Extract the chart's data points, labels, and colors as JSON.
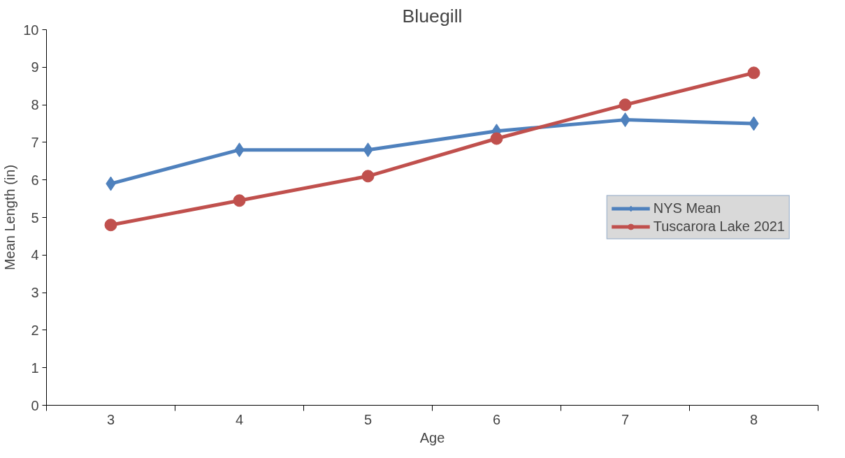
{
  "chart_data": {
    "type": "line",
    "title": "Bluegill",
    "xlabel": "Age",
    "ylabel": "Mean Length (in)",
    "categories": [
      "3",
      "4",
      "5",
      "6",
      "7",
      "8"
    ],
    "series": [
      {
        "name": "NYS Mean",
        "color": "#4f81bd",
        "marker": "diamond",
        "values": [
          5.9,
          6.8,
          6.8,
          7.3,
          7.6,
          7.5
        ]
      },
      {
        "name": "Tuscarora Lake 2021",
        "color": "#c0504d",
        "marker": "circle",
        "values": [
          4.8,
          5.45,
          6.1,
          7.1,
          8.0,
          8.85
        ]
      }
    ],
    "ylim": [
      0,
      10
    ],
    "yticks": [
      0,
      1,
      2,
      3,
      4,
      5,
      6,
      7,
      8,
      9,
      10
    ],
    "grid": false,
    "legend": "right"
  }
}
